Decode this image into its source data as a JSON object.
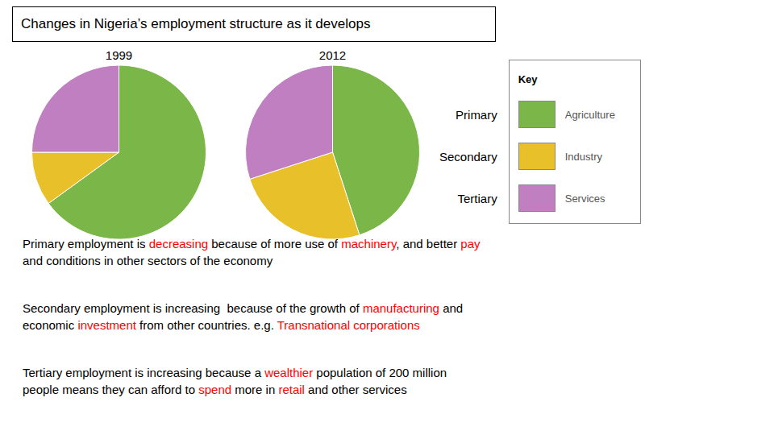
{
  "chart_data": {
    "type": "pie",
    "title": "Changes in Nigeria’s employment structure as it develops",
    "categories": [
      "Agriculture",
      "Industry",
      "Services"
    ],
    "colors": [
      "#7ab648",
      "#e8c02a",
      "#bf7fc0"
    ],
    "series": [
      {
        "name": "1999",
        "values": [
          65,
          10,
          25
        ]
      },
      {
        "name": "2012",
        "values": [
          45,
          25,
          30
        ]
      }
    ],
    "legend_title": "Key",
    "category_groups": [
      "Primary",
      "Secondary",
      "Tertiary"
    ],
    "annotations": [
      {
        "parts": [
          {
            "text": "Primary employment is ",
            "color": "black"
          },
          {
            "text": "decreasing",
            "color": "red"
          },
          {
            "text": " because of more use of ",
            "color": "black"
          },
          {
            "text": "machinery",
            "color": "red"
          },
          {
            "text": ", and better ",
            "color": "black"
          },
          {
            "text": "pay",
            "color": "red"
          },
          {
            "text": "\nand conditions in other sectors of the economy",
            "color": "black"
          }
        ]
      },
      {
        "parts": [
          {
            "text": "Secondary employment is increasing  because of the growth of ",
            "color": "black"
          },
          {
            "text": "manufacturing",
            "color": "red"
          },
          {
            "text": " and\neconomic ",
            "color": "black"
          },
          {
            "text": "investment",
            "color": "red"
          },
          {
            "text": " from other countries. e.g. ",
            "color": "black"
          },
          {
            "text": "Transnational corporations",
            "color": "red"
          }
        ]
      },
      {
        "parts": [
          {
            "text": "Tertiary employment is increasing because a ",
            "color": "black"
          },
          {
            "text": "wealthier",
            "color": "red"
          },
          {
            "text": " population of 200 million\npeople means they can afford to ",
            "color": "black"
          },
          {
            "text": "spend",
            "color": "red"
          },
          {
            "text": " more in ",
            "color": "black"
          },
          {
            "text": "retail",
            "color": "red"
          },
          {
            "text": " and other services",
            "color": "black"
          }
        ]
      }
    ]
  }
}
